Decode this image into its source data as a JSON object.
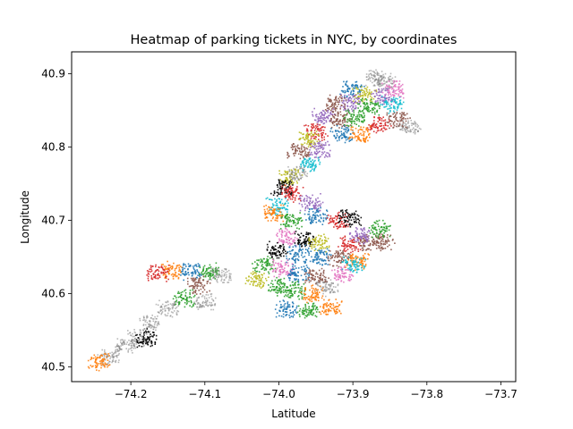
{
  "chart_data": {
    "type": "scatter",
    "title": "Heatmap of parking tickets in NYC, by coordinates",
    "xlabel": "Latitude",
    "ylabel": "Longitude",
    "xlim": [
      -74.28,
      -73.68
    ],
    "ylim": [
      40.48,
      40.93
    ],
    "xticks": [
      {
        "value": -74.2,
        "label": "−74.2"
      },
      {
        "value": -74.1,
        "label": "−74.1"
      },
      {
        "value": -74.0,
        "label": "−74.0"
      },
      {
        "value": -73.9,
        "label": "−73.9"
      },
      {
        "value": -73.8,
        "label": "−73.8"
      },
      {
        "value": -73.7,
        "label": "−73.7"
      }
    ],
    "yticks": [
      {
        "value": 40.5,
        "label": "40.5"
      },
      {
        "value": 40.6,
        "label": "40.6"
      },
      {
        "value": 40.7,
        "label": "40.7"
      },
      {
        "value": 40.8,
        "label": "40.8"
      },
      {
        "value": 40.9,
        "label": "40.9"
      }
    ],
    "grid": false,
    "legend": "none",
    "clusters": [
      {
        "x": -73.87,
        "y": 40.895,
        "color": "#7f7f7f"
      },
      {
        "x": -73.858,
        "y": 40.89,
        "color": "#7f7f7f"
      },
      {
        "x": -73.902,
        "y": 40.88,
        "color": "#1f77b4"
      },
      {
        "x": -73.885,
        "y": 40.872,
        "color": "#bcbd22"
      },
      {
        "x": -73.905,
        "y": 40.862,
        "color": "#9467bd"
      },
      {
        "x": -73.925,
        "y": 40.86,
        "color": "#8c564b"
      },
      {
        "x": -73.86,
        "y": 40.87,
        "color": "#9467bd"
      },
      {
        "x": -73.845,
        "y": 40.88,
        "color": "#e377c2"
      },
      {
        "x": -73.848,
        "y": 40.858,
        "color": "#17becf"
      },
      {
        "x": -73.88,
        "y": 40.855,
        "color": "#2ca02c"
      },
      {
        "x": -73.94,
        "y": 40.843,
        "color": "#9467bd"
      },
      {
        "x": -73.918,
        "y": 40.838,
        "color": "#8c564b"
      },
      {
        "x": -73.898,
        "y": 40.84,
        "color": "#2ca02c"
      },
      {
        "x": -73.865,
        "y": 40.832,
        "color": "#d62728"
      },
      {
        "x": -73.84,
        "y": 40.838,
        "color": "#8c564b"
      },
      {
        "x": -73.825,
        "y": 40.83,
        "color": "#7f7f7f"
      },
      {
        "x": -73.95,
        "y": 40.822,
        "color": "#d62728"
      },
      {
        "x": -73.915,
        "y": 40.818,
        "color": "#1f77b4"
      },
      {
        "x": -73.89,
        "y": 40.818,
        "color": "#ff7f0e"
      },
      {
        "x": -73.958,
        "y": 40.812,
        "color": "#bcbd22"
      },
      {
        "x": -73.975,
        "y": 40.795,
        "color": "#8c564b"
      },
      {
        "x": -73.945,
        "y": 40.798,
        "color": "#9467bd"
      },
      {
        "x": -73.96,
        "y": 40.778,
        "color": "#17becf"
      },
      {
        "x": -73.985,
        "y": 40.76,
        "color": "#bcbd22"
      },
      {
        "x": -73.975,
        "y": 40.765,
        "color": "#7f7f7f"
      },
      {
        "x": -73.995,
        "y": 40.745,
        "color": "#000000"
      },
      {
        "x": -73.985,
        "y": 40.738,
        "color": "#d62728"
      },
      {
        "x": -74.002,
        "y": 40.72,
        "color": "#17becf"
      },
      {
        "x": -74.008,
        "y": 40.71,
        "color": "#ff7f0e"
      },
      {
        "x": -73.958,
        "y": 40.725,
        "color": "#9467bd"
      },
      {
        "x": -73.95,
        "y": 40.707,
        "color": "#1f77b4"
      },
      {
        "x": -73.92,
        "y": 40.7,
        "color": "#d62728"
      },
      {
        "x": -73.905,
        "y": 40.705,
        "color": "#000000"
      },
      {
        "x": -73.985,
        "y": 40.7,
        "color": "#2ca02c"
      },
      {
        "x": -73.99,
        "y": 40.678,
        "color": "#e377c2"
      },
      {
        "x": -73.965,
        "y": 40.675,
        "color": "#000000"
      },
      {
        "x": -73.945,
        "y": 40.67,
        "color": "#bcbd22"
      },
      {
        "x": -73.905,
        "y": 40.668,
        "color": "#d62728"
      },
      {
        "x": -73.88,
        "y": 40.67,
        "color": "#8c564b"
      },
      {
        "x": -73.86,
        "y": 40.672,
        "color": "#8c564b"
      },
      {
        "x": -73.865,
        "y": 40.69,
        "color": "#2ca02c"
      },
      {
        "x": -73.89,
        "y": 40.68,
        "color": "#9467bd"
      },
      {
        "x": -74.005,
        "y": 40.66,
        "color": "#000000"
      },
      {
        "x": -73.975,
        "y": 40.655,
        "color": "#1f77b4"
      },
      {
        "x": -73.945,
        "y": 40.65,
        "color": "#1f77b4"
      },
      {
        "x": -73.92,
        "y": 40.65,
        "color": "#8c564b"
      },
      {
        "x": -73.895,
        "y": 40.645,
        "color": "#ff7f0e"
      },
      {
        "x": -74.02,
        "y": 40.64,
        "color": "#2ca02c"
      },
      {
        "x": -73.995,
        "y": 40.635,
        "color": "#e377c2"
      },
      {
        "x": -73.975,
        "y": 40.628,
        "color": "#1f77b4"
      },
      {
        "x": -73.95,
        "y": 40.625,
        "color": "#8c564b"
      },
      {
        "x": -73.915,
        "y": 40.628,
        "color": "#e377c2"
      },
      {
        "x": -73.9,
        "y": 40.64,
        "color": "#17becf"
      },
      {
        "x": -74.03,
        "y": 40.62,
        "color": "#bcbd22"
      },
      {
        "x": -74.0,
        "y": 40.61,
        "color": "#2ca02c"
      },
      {
        "x": -73.98,
        "y": 40.605,
        "color": "#2ca02c"
      },
      {
        "x": -73.955,
        "y": 40.6,
        "color": "#ff7f0e"
      },
      {
        "x": -73.935,
        "y": 40.61,
        "color": "#7f7f7f"
      },
      {
        "x": -73.99,
        "y": 40.58,
        "color": "#1f77b4"
      },
      {
        "x": -73.96,
        "y": 40.578,
        "color": "#2ca02c"
      },
      {
        "x": -73.93,
        "y": 40.582,
        "color": "#ff7f0e"
      },
      {
        "x": -74.145,
        "y": 40.633,
        "color": "#ff7f0e"
      },
      {
        "x": -74.12,
        "y": 40.632,
        "color": "#1f77b4"
      },
      {
        "x": -74.095,
        "y": 40.63,
        "color": "#2ca02c"
      },
      {
        "x": -74.08,
        "y": 40.625,
        "color": "#7f7f7f"
      },
      {
        "x": -74.165,
        "y": 40.63,
        "color": "#d62728"
      },
      {
        "x": -74.11,
        "y": 40.612,
        "color": "#8c564b"
      },
      {
        "x": -74.1,
        "y": 40.59,
        "color": "#7f7f7f"
      },
      {
        "x": -74.13,
        "y": 40.595,
        "color": "#2ca02c"
      },
      {
        "x": -74.15,
        "y": 40.58,
        "color": "#7f7f7f"
      },
      {
        "x": -74.175,
        "y": 40.56,
        "color": "#7f7f7f"
      },
      {
        "x": -74.19,
        "y": 40.54,
        "color": "#7f7f7f"
      },
      {
        "x": -74.21,
        "y": 40.53,
        "color": "#7f7f7f"
      },
      {
        "x": -74.23,
        "y": 40.515,
        "color": "#7f7f7f"
      },
      {
        "x": -74.245,
        "y": 40.508,
        "color": "#ff7f0e"
      },
      {
        "x": -74.18,
        "y": 40.54,
        "color": "#000000"
      }
    ]
  }
}
